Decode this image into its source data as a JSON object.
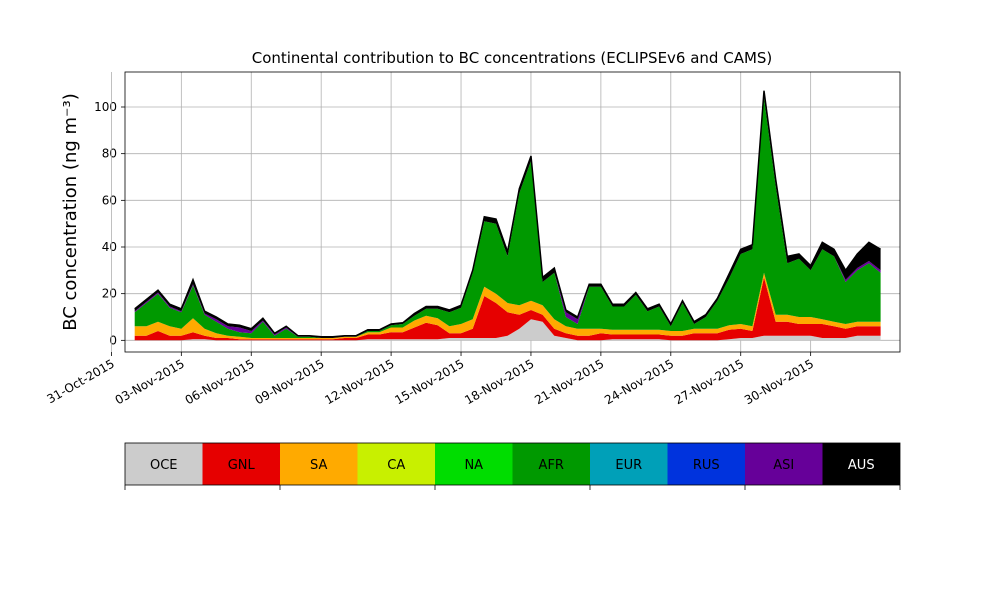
{
  "chart_data": {
    "type": "area",
    "stacked": true,
    "title": "Continental contribution to BC concentrations (ECLIPSEv6 and CAMS)",
    "xlabel": "",
    "ylabel": "BC concentration (ng m⁻³)",
    "ylim": [
      -5,
      115
    ],
    "xlim": [
      "2015-10-31T14:00",
      "2015-12-03T20:00"
    ],
    "grid": true,
    "y_ticks": [
      0,
      20,
      40,
      60,
      80,
      100
    ],
    "x_ticks": [
      "31-Oct-2015",
      "03-Nov-2015",
      "06-Nov-2015",
      "09-Nov-2015",
      "12-Nov-2015",
      "15-Nov-2015",
      "18-Nov-2015",
      "21-Nov-2015",
      "24-Nov-2015",
      "27-Nov-2015",
      "30-Nov-2015"
    ],
    "x": [
      "2015-11-01T00:00",
      "2015-11-01T12:00",
      "2015-11-02T00:00",
      "2015-11-02T12:00",
      "2015-11-03T00:00",
      "2015-11-03T12:00",
      "2015-11-04T00:00",
      "2015-11-04T12:00",
      "2015-11-05T00:00",
      "2015-11-05T12:00",
      "2015-11-06T00:00",
      "2015-11-06T12:00",
      "2015-11-07T00:00",
      "2015-11-07T12:00",
      "2015-11-08T00:00",
      "2015-11-08T12:00",
      "2015-11-09T00:00",
      "2015-11-09T12:00",
      "2015-11-10T00:00",
      "2015-11-10T12:00",
      "2015-11-11T00:00",
      "2015-11-11T12:00",
      "2015-11-12T00:00",
      "2015-11-12T12:00",
      "2015-11-13T00:00",
      "2015-11-13T12:00",
      "2015-11-14T00:00",
      "2015-11-14T12:00",
      "2015-11-15T00:00",
      "2015-11-15T12:00",
      "2015-11-16T00:00",
      "2015-11-16T12:00",
      "2015-11-17T00:00",
      "2015-11-17T12:00",
      "2015-11-18T00:00",
      "2015-11-18T12:00",
      "2015-11-19T00:00",
      "2015-11-19T12:00",
      "2015-11-20T00:00",
      "2015-11-20T12:00",
      "2015-11-21T00:00",
      "2015-11-21T12:00",
      "2015-11-22T00:00",
      "2015-11-22T12:00",
      "2015-11-23T00:00",
      "2015-11-23T12:00",
      "2015-11-24T00:00",
      "2015-11-24T12:00",
      "2015-11-25T00:00",
      "2015-11-25T12:00",
      "2015-11-26T00:00",
      "2015-11-26T12:00",
      "2015-11-27T00:00",
      "2015-11-27T12:00",
      "2015-11-28T00:00",
      "2015-11-28T12:00",
      "2015-11-29T00:00",
      "2015-11-29T12:00",
      "2015-11-30T00:00",
      "2015-11-30T12:00",
      "2015-12-01T00:00",
      "2015-12-01T12:00",
      "2015-12-02T00:00",
      "2015-12-02T12:00",
      "2015-12-03T00:00"
    ],
    "series": [
      {
        "name": "OCE",
        "color": "#cccccc",
        "values": [
          0,
          0,
          0,
          0,
          0,
          0.5,
          0.5,
          0,
          0,
          0,
          0,
          0,
          0,
          0,
          0,
          0,
          0,
          0,
          0,
          0,
          0.5,
          0.5,
          0.5,
          0.5,
          0.5,
          0.5,
          0.5,
          1,
          1,
          1,
          1,
          1,
          2,
          5,
          9,
          8,
          2,
          1,
          0,
          0,
          0,
          0.5,
          0.5,
          0.5,
          0.5,
          0.5,
          0,
          0,
          0,
          0,
          0,
          0.5,
          1,
          1,
          2,
          2,
          2,
          2,
          2,
          1,
          1,
          1,
          2,
          2,
          2
        ]
      },
      {
        "name": "GNL",
        "color": "#e60000",
        "values": [
          2,
          2,
          4,
          2,
          2,
          3,
          1.5,
          1,
          1,
          0.5,
          0.5,
          0.5,
          0.5,
          0.5,
          0.5,
          0.5,
          0.5,
          0.5,
          1,
          1,
          2,
          2,
          3,
          3,
          5,
          7,
          6,
          2,
          2,
          4,
          18,
          15,
          10,
          6,
          4,
          3,
          3,
          2,
          2,
          2,
          3,
          2,
          2,
          2,
          2,
          2,
          2,
          2,
          3,
          3,
          3,
          4,
          4,
          3,
          25,
          6,
          6,
          5,
          5,
          6,
          5,
          4,
          4,
          4,
          4
        ]
      },
      {
        "name": "SA",
        "color": "#ffaa00",
        "values": [
          4,
          4,
          4,
          4,
          3,
          6,
          3,
          2,
          1,
          1,
          0.5,
          0.5,
          0.5,
          0.5,
          0.5,
          0.5,
          0.5,
          0.5,
          0.5,
          0.5,
          1,
          1,
          2,
          2,
          3,
          3,
          3,
          3,
          4,
          4,
          4,
          4,
          4,
          4,
          4,
          4,
          4,
          3,
          3,
          3,
          2,
          2,
          2,
          2,
          2,
          2,
          2,
          2,
          2,
          2,
          2,
          2,
          2,
          2,
          2,
          3,
          3,
          3,
          3,
          2,
          2,
          2,
          2,
          2,
          2
        ]
      },
      {
        "name": "CA",
        "color": "#c8f000",
        "values": [
          0,
          0,
          0,
          0,
          0,
          0,
          0,
          0,
          0,
          0,
          0,
          0,
          0,
          0,
          0,
          0,
          0,
          0,
          0,
          0,
          0,
          0,
          0,
          0,
          0,
          0,
          0,
          0,
          0,
          0,
          0,
          0,
          0,
          0,
          0,
          0,
          0,
          0,
          0,
          0,
          0,
          0,
          0,
          0,
          0,
          0,
          0,
          0,
          0,
          0,
          0,
          0,
          0,
          0,
          0,
          0,
          0,
          0,
          0,
          0,
          0,
          0,
          0,
          0,
          0
        ]
      },
      {
        "name": "NA",
        "color": "#00dd00",
        "values": [
          0,
          0,
          0,
          0,
          0,
          0,
          0,
          0,
          0,
          0,
          0,
          0,
          0,
          0,
          0,
          0,
          0,
          0,
          0,
          0,
          0,
          0,
          0,
          0,
          0,
          0,
          0,
          0,
          0,
          0,
          0,
          0,
          0,
          0,
          0,
          0,
          0,
          0,
          0,
          0,
          0,
          0,
          0,
          0,
          0,
          0,
          0,
          0,
          0,
          0,
          0,
          0,
          0,
          0,
          0,
          0,
          0,
          0,
          0,
          0,
          0,
          0,
          0,
          0,
          0
        ]
      },
      {
        "name": "AFR",
        "color": "#009900",
        "values": [
          6,
          10,
          12,
          8,
          7,
          14,
          6,
          5,
          3,
          2,
          2,
          7,
          1,
          4,
          0.5,
          0.5,
          0,
          0,
          0,
          0,
          0.5,
          0.5,
          1,
          1.5,
          2,
          3,
          4,
          6,
          7,
          20,
          28,
          30,
          20,
          48,
          60,
          10,
          20,
          4,
          2,
          18,
          18,
          10,
          10,
          15,
          8,
          10,
          2,
          12,
          2,
          5,
          12,
          20,
          30,
          33,
          75,
          55,
          22,
          25,
          20,
          30,
          28,
          18,
          22,
          25,
          21
        ]
      },
      {
        "name": "EUR",
        "color": "#00a0b8",
        "values": [
          0,
          0,
          0,
          0,
          0,
          0,
          0,
          0,
          0,
          0,
          0,
          0,
          0,
          0,
          0,
          0,
          0,
          0,
          0,
          0,
          0,
          0,
          0,
          0,
          0,
          0,
          0,
          0,
          0,
          0,
          0,
          0,
          0,
          0,
          0,
          0,
          0,
          0,
          0,
          0,
          0,
          0,
          0,
          0,
          0,
          0,
          0,
          0,
          0,
          0,
          0,
          0,
          0,
          0,
          0,
          0,
          0,
          0,
          0,
          0,
          0,
          0,
          0,
          0,
          0
        ]
      },
      {
        "name": "RUS",
        "color": "#0033dd",
        "values": [
          0,
          0,
          0,
          0,
          0,
          0,
          0,
          0,
          0,
          0,
          0,
          0,
          0,
          0,
          0,
          0,
          0,
          0,
          0,
          0,
          0,
          0,
          0,
          0,
          0,
          0,
          0,
          0,
          0,
          0,
          0,
          0,
          0,
          0,
          0,
          0,
          0,
          0,
          0,
          0,
          0,
          0,
          0,
          0,
          0,
          0,
          0,
          0,
          0,
          0,
          0,
          0,
          0,
          0,
          0,
          0,
          0,
          0,
          0,
          0,
          0,
          0,
          0,
          0,
          0
        ]
      },
      {
        "name": "ASI",
        "color": "#660099",
        "values": [
          0.5,
          0.5,
          0.5,
          0.5,
          0.5,
          0.5,
          0.5,
          1,
          1,
          2,
          1,
          0.5,
          0.5,
          0.5,
          0,
          0,
          0,
          0,
          0,
          0,
          0,
          0,
          0,
          0,
          0,
          0,
          0,
          0,
          0,
          0,
          0,
          0,
          0,
          0,
          0,
          0,
          0,
          2,
          2,
          0,
          0,
          0,
          0,
          0,
          0,
          0,
          0,
          0,
          0,
          0,
          0,
          0,
          0,
          0,
          0,
          0,
          0,
          0,
          0,
          0,
          0,
          1,
          1,
          1,
          1
        ]
      },
      {
        "name": "AUS",
        "color": "#000000",
        "values": [
          1,
          1,
          1,
          1,
          1,
          2,
          1,
          1,
          1,
          1,
          1,
          1,
          0.5,
          0.5,
          0.5,
          0.5,
          0.5,
          0.5,
          0.5,
          0.5,
          0.5,
          0.5,
          0.5,
          0.5,
          1,
          1,
          1,
          1,
          1,
          1,
          2,
          2,
          2,
          2,
          2,
          2,
          2,
          1,
          1,
          1,
          1,
          1,
          1,
          1,
          1,
          1,
          1,
          1,
          1,
          1,
          1,
          2,
          2,
          2,
          3,
          3,
          3,
          2,
          2,
          3,
          3,
          4,
          6,
          8,
          9
        ]
      }
    ]
  },
  "legend": {
    "items": [
      {
        "label": "OCE",
        "color": "#cccccc",
        "text_color": "#000000"
      },
      {
        "label": "GNL",
        "color": "#e60000",
        "text_color": "#000000"
      },
      {
        "label": "SA",
        "color": "#ffaa00",
        "text_color": "#000000"
      },
      {
        "label": "CA",
        "color": "#c8f000",
        "text_color": "#000000"
      },
      {
        "label": "NA",
        "color": "#00dd00",
        "text_color": "#000000"
      },
      {
        "label": "AFR",
        "color": "#009900",
        "text_color": "#000000"
      },
      {
        "label": "EUR",
        "color": "#00a0b8",
        "text_color": "#000000"
      },
      {
        "label": "RUS",
        "color": "#0033dd",
        "text_color": "#000000"
      },
      {
        "label": "ASI",
        "color": "#660099",
        "text_color": "#000000"
      },
      {
        "label": "AUS",
        "color": "#000000",
        "text_color": "#ffffff"
      }
    ]
  }
}
